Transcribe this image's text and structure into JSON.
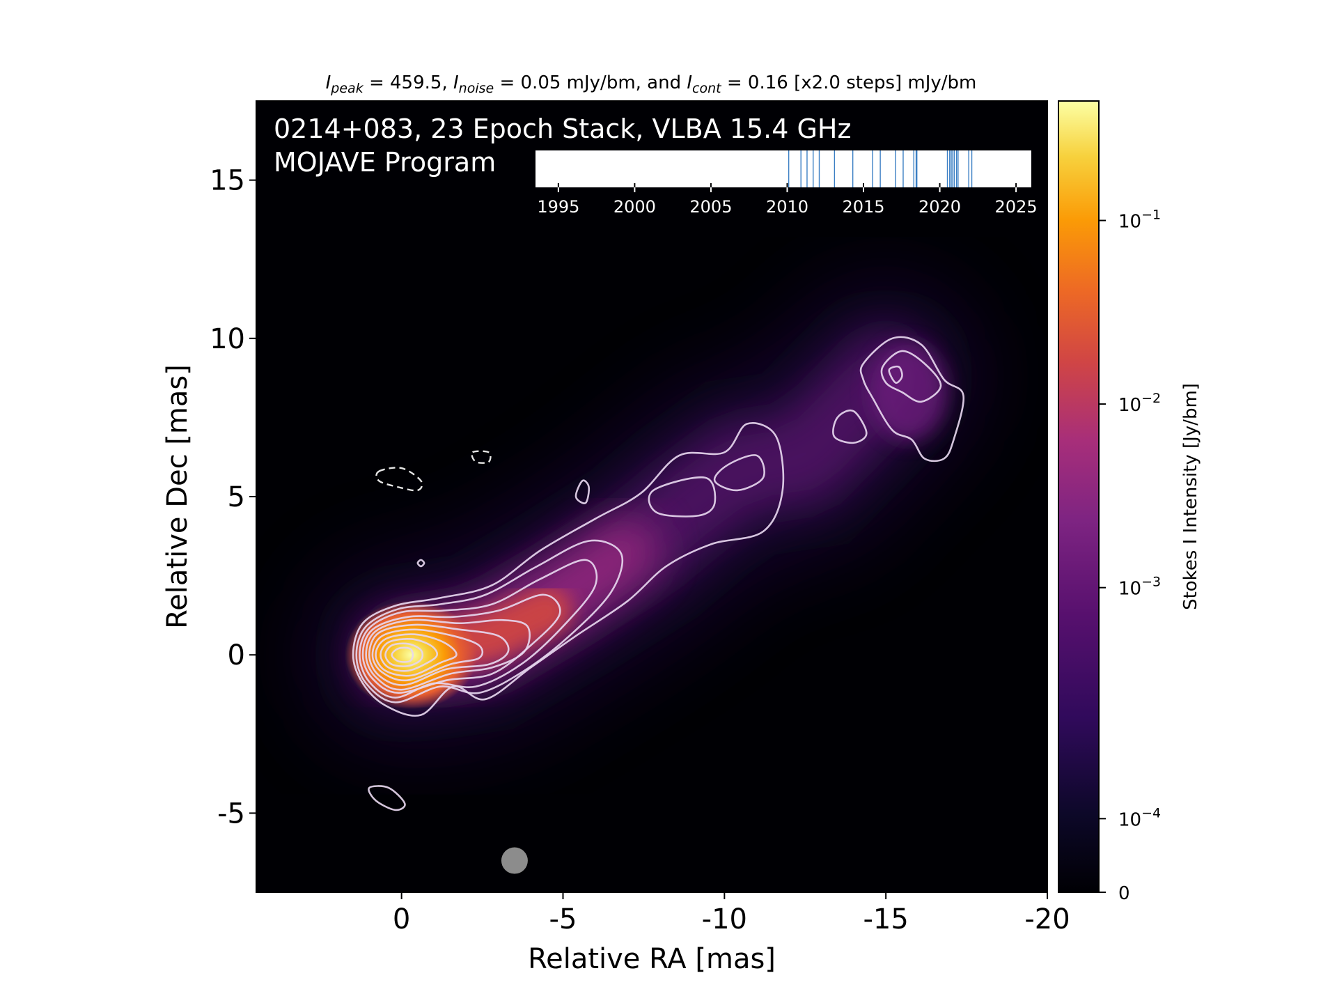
{
  "chart_data": {
    "type": "heatmap",
    "title_parts": [
      {
        "t": "I",
        "i": true
      },
      {
        "t": "peak",
        "s": true
      },
      {
        "t": " = 459.5, "
      },
      {
        "t": "I",
        "i": true
      },
      {
        "t": "noise",
        "s": true
      },
      {
        "t": " = 0.05 mJy/bm, and "
      },
      {
        "t": "I",
        "i": true
      },
      {
        "t": "cont",
        "s": true
      },
      {
        "t": " = 0.16 [x2.0 steps] mJy/bm"
      }
    ],
    "panel_title_line1": "0214+083, 23 Epoch Stack, VLBA 15.4 GHz",
    "panel_title_line2": "MOJAVE Program",
    "xlabel": "Relative RA [mas]",
    "ylabel": "Relative Dec [mas]",
    "xlim": [
      4.5,
      -20
    ],
    "ylim": [
      -7.5,
      17.5
    ],
    "xticks": [
      0,
      -5,
      -10,
      -15,
      -20
    ],
    "xtick_labels": [
      "0",
      "-5",
      "-10",
      "-15",
      "-20"
    ],
    "yticks": [
      -5,
      0,
      5,
      10,
      15
    ],
    "ytick_labels": [
      "-5",
      "0",
      "5",
      "10",
      "15"
    ],
    "colorbar": {
      "label": "Stokes I Intensity [Jy/bm]",
      "scale": "log",
      "ticks": [
        {
          "pos": 0.0,
          "base": "0",
          "exp": ""
        },
        {
          "pos": 0.093,
          "base": "10",
          "exp": "−4"
        },
        {
          "pos": 0.385,
          "base": "10",
          "exp": "−3"
        },
        {
          "pos": 0.617,
          "base": "10",
          "exp": "−2"
        },
        {
          "pos": 0.849,
          "base": "10",
          "exp": "−1"
        }
      ]
    },
    "timeline": {
      "xlim": [
        1993.5,
        2026
      ],
      "ticks": [
        1995,
        2000,
        2005,
        2010,
        2015,
        2020,
        2025
      ],
      "tick_labels": [
        "1995",
        "2000",
        "2005",
        "2010",
        "2015",
        "2020",
        "2025"
      ],
      "epochs": [
        2010.1,
        2010.9,
        2011.3,
        2011.7,
        2012.1,
        2013.1,
        2014.3,
        2015.6,
        2016.1,
        2017.1,
        2017.6,
        2018.3,
        2018.45,
        2018.5,
        2020.5,
        2020.65,
        2020.75,
        2020.85,
        2020.95,
        2021.1,
        2021.2,
        2021.9,
        2022.1
      ]
    },
    "beam": {
      "x": -3.5,
      "y": -6.5,
      "major_mas": 0.85
    },
    "jet": {
      "core": {
        "x": 0,
        "y": 0
      },
      "ridge": [
        [
          0,
          0
        ],
        [
          -2.5,
          0.4
        ],
        [
          -5,
          1.9
        ],
        [
          -7.5,
          3.5
        ],
        [
          -9,
          4.8
        ],
        [
          -10.5,
          5.9
        ],
        [
          -12.5,
          6.2
        ],
        [
          -15,
          8.8
        ]
      ],
      "contours": [
        {
          "level": "lowest",
          "points": [
            [
              1.5,
              0
            ],
            [
              1.2,
              1.0
            ],
            [
              0.2,
              1.55
            ],
            [
              -1.2,
              1.8
            ],
            [
              -2.8,
              2.2
            ],
            [
              -4.3,
              3.3
            ],
            [
              -6.0,
              4.3
            ],
            [
              -7.4,
              5.1
            ],
            [
              -8.6,
              6.3
            ],
            [
              -10.0,
              6.4
            ],
            [
              -10.7,
              7.3
            ],
            [
              -11.6,
              6.9
            ],
            [
              -11.8,
              5.2
            ],
            [
              -11.2,
              3.9
            ],
            [
              -9.6,
              3.5
            ],
            [
              -8.2,
              2.8
            ],
            [
              -7.0,
              1.7
            ],
            [
              -5.4,
              0.6
            ],
            [
              -4.0,
              -0.4
            ],
            [
              -2.6,
              -1.4
            ],
            [
              -1.6,
              -1.0
            ],
            [
              -0.6,
              -1.9
            ],
            [
              0.5,
              -1.6
            ],
            [
              1.2,
              -0.9
            ]
          ]
        },
        {
          "level": "2",
          "points": [
            [
              1.4,
              0
            ],
            [
              1.1,
              0.9
            ],
            [
              0.1,
              1.45
            ],
            [
              -1.2,
              1.6
            ],
            [
              -2.6,
              1.9
            ],
            [
              -4.2,
              2.8
            ],
            [
              -5.8,
              3.6
            ],
            [
              -6.8,
              3.2
            ],
            [
              -6.5,
              2.0
            ],
            [
              -5.2,
              0.6
            ],
            [
              -3.8,
              -0.5
            ],
            [
              -2.4,
              -1.2
            ],
            [
              -1.2,
              -1.0
            ],
            [
              0.2,
              -1.5
            ],
            [
              1.1,
              -0.9
            ]
          ]
        },
        {
          "level": "3",
          "points": [
            [
              1.3,
              0
            ],
            [
              1.0,
              0.85
            ],
            [
              0,
              1.35
            ],
            [
              -1.3,
              1.4
            ],
            [
              -2.8,
              1.6
            ],
            [
              -4.3,
              2.4
            ],
            [
              -5.7,
              3.0
            ],
            [
              -6.0,
              2.2
            ],
            [
              -5.0,
              0.9
            ],
            [
              -3.7,
              -0.3
            ],
            [
              -2.3,
              -1.0
            ],
            [
              -1.0,
              -0.9
            ],
            [
              0.2,
              -1.35
            ],
            [
              1.0,
              -0.85
            ]
          ]
        },
        {
          "level": "4",
          "points": [
            [
              1.2,
              0
            ],
            [
              0.9,
              0.8
            ],
            [
              -0.2,
              1.2
            ],
            [
              -1.6,
              1.2
            ],
            [
              -3.0,
              1.4
            ],
            [
              -4.4,
              1.9
            ],
            [
              -4.9,
              1.3
            ],
            [
              -4.0,
              0.3
            ],
            [
              -2.8,
              -0.6
            ],
            [
              -1.4,
              -0.8
            ],
            [
              0.1,
              -1.2
            ],
            [
              0.9,
              -0.75
            ]
          ]
        },
        {
          "level": "5",
          "points": [
            [
              1.1,
              0
            ],
            [
              0.8,
              0.75
            ],
            [
              -0.3,
              1.1
            ],
            [
              -1.8,
              1.0
            ],
            [
              -3.1,
              1.1
            ],
            [
              -3.9,
              0.9
            ],
            [
              -3.8,
              0.1
            ],
            [
              -2.8,
              -0.4
            ],
            [
              -1.5,
              -0.6
            ],
            [
              0,
              -1.1
            ],
            [
              0.8,
              -0.7
            ]
          ]
        },
        {
          "level": "6",
          "points": [
            [
              1.0,
              0
            ],
            [
              0.7,
              0.7
            ],
            [
              -0.4,
              0.95
            ],
            [
              -1.8,
              0.8
            ],
            [
              -3.0,
              0.6
            ],
            [
              -3.3,
              0.1
            ],
            [
              -2.7,
              -0.3
            ],
            [
              -1.4,
              -0.45
            ],
            [
              -0.1,
              -0.95
            ],
            [
              0.7,
              -0.65
            ]
          ]
        },
        {
          "level": "7",
          "points": [
            [
              0.9,
              0
            ],
            [
              0.6,
              0.6
            ],
            [
              -0.4,
              0.8
            ],
            [
              -1.6,
              0.6
            ],
            [
              -2.4,
              0.3
            ],
            [
              -2.4,
              -0.1
            ],
            [
              -1.5,
              -0.3
            ],
            [
              -0.2,
              -0.8
            ],
            [
              0.6,
              -0.55
            ]
          ]
        },
        {
          "level": "8",
          "points": [
            [
              0.8,
              0
            ],
            [
              0.5,
              0.5
            ],
            [
              -0.4,
              0.65
            ],
            [
              -1.3,
              0.4
            ],
            [
              -1.7,
              0.0
            ],
            [
              -1.2,
              -0.25
            ],
            [
              -0.3,
              -0.65
            ],
            [
              0.5,
              -0.5
            ]
          ]
        },
        {
          "level": "9",
          "points": [
            [
              0.65,
              0
            ],
            [
              0.4,
              0.4
            ],
            [
              -0.3,
              0.5
            ],
            [
              -0.9,
              0.3
            ],
            [
              -1.1,
              0
            ],
            [
              -0.8,
              -0.25
            ],
            [
              -0.2,
              -0.5
            ],
            [
              0.4,
              -0.4
            ]
          ]
        },
        {
          "level": "10",
          "points": [
            [
              0.5,
              0
            ],
            [
              0.3,
              0.3
            ],
            [
              -0.2,
              0.35
            ],
            [
              -0.6,
              0.15
            ],
            [
              -0.6,
              -0.15
            ],
            [
              -0.2,
              -0.35
            ],
            [
              0.3,
              -0.3
            ]
          ]
        },
        {
          "level": "11",
          "points": [
            [
              0.3,
              0
            ],
            [
              0.1,
              0.2
            ],
            [
              -0.25,
              0.2
            ],
            [
              -0.35,
              0
            ],
            [
              -0.25,
              -0.2
            ],
            [
              0.1,
              -0.2
            ]
          ]
        },
        {
          "level": "knotA",
          "points": [
            [
              -7.8,
              5.2
            ],
            [
              -9.4,
              5.6
            ],
            [
              -9.7,
              4.8
            ],
            [
              -9.2,
              4.4
            ],
            [
              -7.9,
              4.5
            ]
          ]
        },
        {
          "level": "knotB",
          "points": [
            [
              -10.1,
              6.0
            ],
            [
              -11.0,
              6.3
            ],
            [
              -11.2,
              5.6
            ],
            [
              -10.4,
              5.2
            ],
            [
              -9.7,
              5.5
            ]
          ]
        },
        {
          "level": "blob15",
          "points": [
            [
              -14.3,
              9.2
            ],
            [
              -15.2,
              10.0
            ],
            [
              -16.1,
              9.8
            ],
            [
              -16.8,
              8.7
            ],
            [
              -17.4,
              8.2
            ],
            [
              -17.1,
              6.8
            ],
            [
              -16.8,
              6.2
            ],
            [
              -16.2,
              6.2
            ],
            [
              -15.8,
              6.8
            ],
            [
              -15.2,
              7.1
            ],
            [
              -14.6,
              8.1
            ],
            [
              -14.3,
              8.7
            ]
          ]
        },
        {
          "level": "blob15-2",
          "points": [
            [
              -14.9,
              9.1
            ],
            [
              -15.5,
              9.6
            ],
            [
              -16.2,
              9.2
            ],
            [
              -16.7,
              8.5
            ],
            [
              -16.1,
              8.0
            ],
            [
              -15.5,
              8.3
            ],
            [
              -15.0,
              8.6
            ]
          ]
        },
        {
          "level": "blob15-3",
          "points": [
            [
              -15.1,
              9.0
            ],
            [
              -15.4,
              9.1
            ],
            [
              -15.5,
              8.8
            ],
            [
              -15.3,
              8.6
            ]
          ]
        },
        {
          "level": "small1",
          "points": [
            [
              -13.5,
              7.5
            ],
            [
              -14.0,
              7.7
            ],
            [
              -14.4,
              7.0
            ],
            [
              -14.0,
              6.7
            ],
            [
              -13.4,
              6.9
            ]
          ]
        },
        {
          "level": "small2",
          "points": [
            [
              -5.6,
              5.5
            ],
            [
              -5.8,
              5.3
            ],
            [
              -5.7,
              4.8
            ],
            [
              -5.4,
              5.0
            ]
          ]
        },
        {
          "level": "small3",
          "points": [
            [
              -0.6,
              3.0
            ],
            [
              -0.7,
              2.9
            ],
            [
              -0.6,
              2.8
            ],
            [
              -0.5,
              2.9
            ]
          ]
        },
        {
          "level": "small4",
          "points": [
            [
              1.0,
              -4.2
            ],
            [
              0.4,
              -4.2
            ],
            [
              -0.1,
              -4.7
            ],
            [
              0.2,
              -4.9
            ],
            [
              0.8,
              -4.6
            ]
          ]
        }
      ],
      "negative_contours": [
        {
          "points": [
            [
              0.7,
              5.8
            ],
            [
              0.0,
              5.9
            ],
            [
              -0.6,
              5.5
            ],
            [
              -0.5,
              5.2
            ],
            [
              0.1,
              5.3
            ],
            [
              0.7,
              5.5
            ]
          ]
        },
        {
          "points": [
            [
              -2.2,
              6.4
            ],
            [
              -2.7,
              6.4
            ],
            [
              -2.7,
              6.1
            ],
            [
              -2.3,
              6.1
            ]
          ]
        }
      ]
    }
  }
}
